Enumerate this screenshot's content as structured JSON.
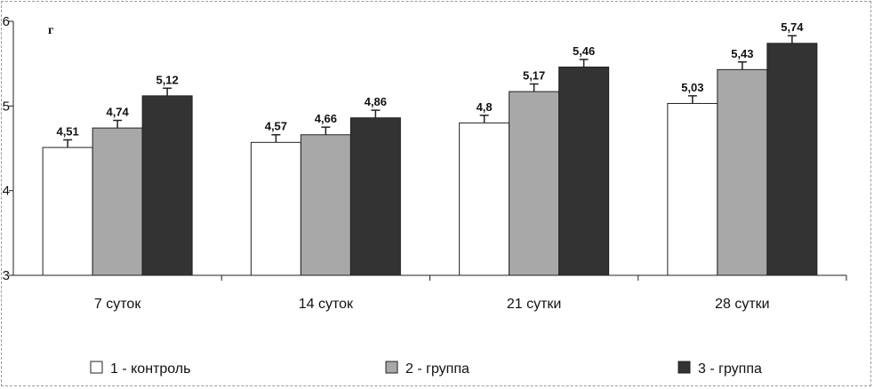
{
  "chart_data": {
    "type": "bar",
    "ylabel": "г",
    "ylim": [
      3,
      6
    ],
    "yticks": [
      3,
      4,
      5,
      6
    ],
    "categories": [
      "7 суток",
      "14 суток",
      "21 сутки",
      "28 сутки"
    ],
    "series": [
      {
        "name": "1 - контроль",
        "color": "#ffffff",
        "values": [
          4.51,
          4.57,
          4.8,
          5.03
        ],
        "labels": [
          "4,51",
          "4,57",
          "4,8",
          "5,03"
        ]
      },
      {
        "name": "2 - группа",
        "color": "#a8a8a8",
        "values": [
          4.74,
          4.66,
          5.17,
          5.43
        ],
        "labels": [
          "4,74",
          "4,66",
          "5,17",
          "5,43"
        ]
      },
      {
        "name": "3 - группа",
        "color": "#333333",
        "values": [
          5.12,
          4.86,
          5.46,
          5.74
        ],
        "labels": [
          "5,12",
          "4,86",
          "5,46",
          "5,74"
        ]
      }
    ],
    "error": 0.09,
    "legend_position": "bottom",
    "grid": false
  }
}
